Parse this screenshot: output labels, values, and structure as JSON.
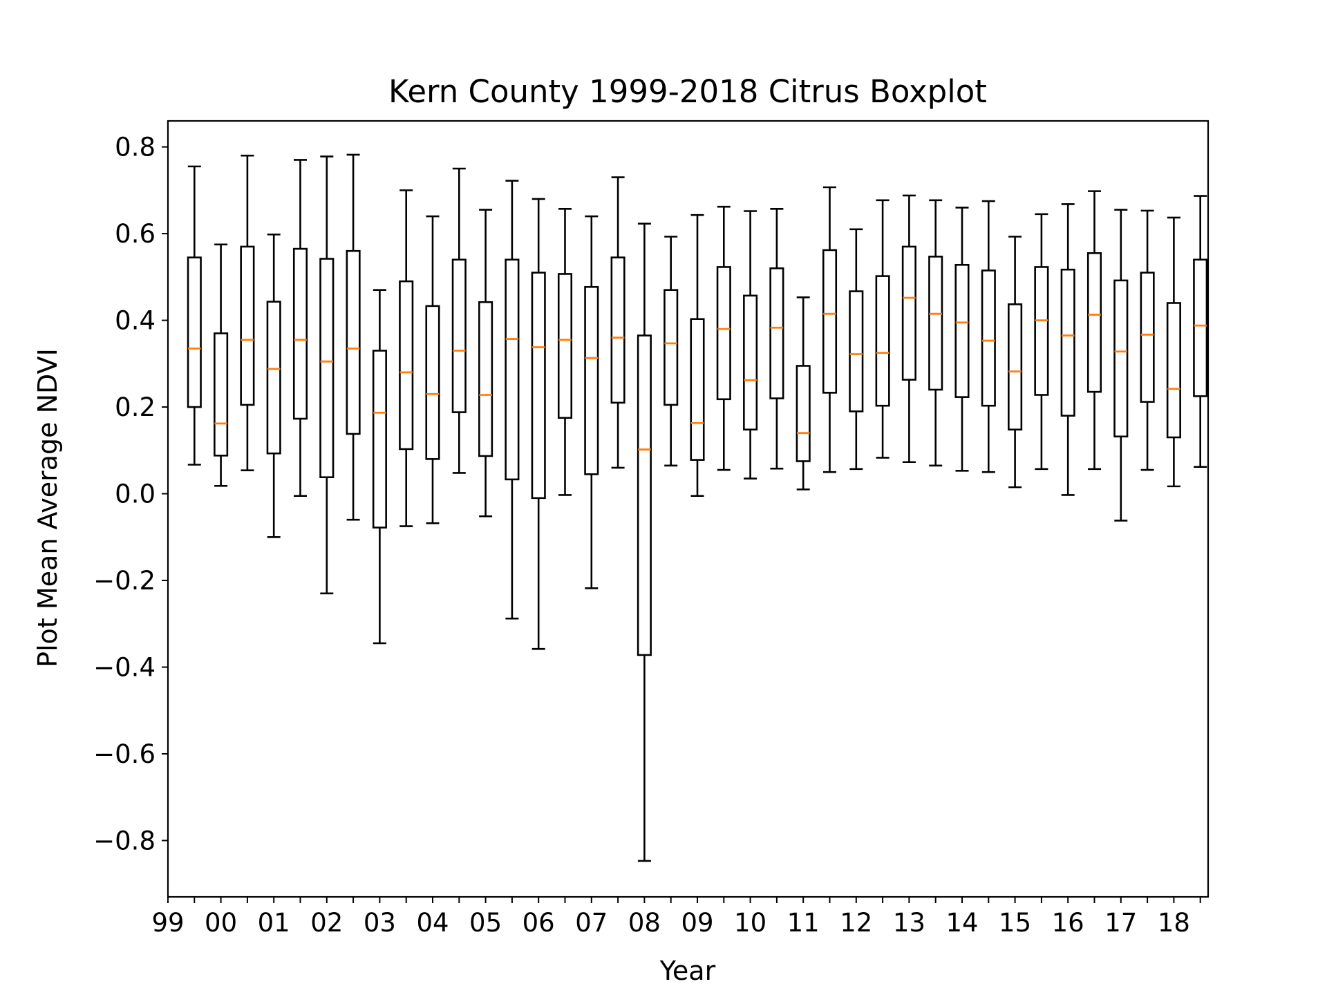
{
  "chart_data": {
    "type": "boxplot",
    "title": "Kern County 1999-2018 Citrus Boxplot",
    "xlabel": "Year",
    "ylabel": "Plot Mean Average NDVI",
    "ylim": [
      -0.93,
      0.86
    ],
    "yticks": [
      0.8,
      0.6,
      0.4,
      0.2,
      0.0,
      -0.2,
      -0.4,
      -0.6,
      -0.8
    ],
    "ytick_labels": [
      "0.8",
      "0.6",
      "0.4",
      "0.2",
      "0.0",
      "−0.2",
      "−0.4",
      "−0.6",
      "−0.8"
    ],
    "xtick_labels": [
      "99",
      "00",
      "01",
      "02",
      "03",
      "04",
      "05",
      "06",
      "07",
      "08",
      "09",
      "10",
      "11",
      "12",
      "13",
      "14",
      "15",
      "16",
      "17",
      "18"
    ],
    "grid": false,
    "colors": {
      "box": "#000000",
      "median": "#ff7f0e"
    },
    "boxes": [
      {
        "whislo": 0.067,
        "q1": 0.2,
        "med": 0.335,
        "q3": 0.545,
        "whishi": 0.755
      },
      {
        "whislo": 0.018,
        "q1": 0.088,
        "med": 0.162,
        "q3": 0.37,
        "whishi": 0.575
      },
      {
        "whislo": 0.054,
        "q1": 0.205,
        "med": 0.355,
        "q3": 0.57,
        "whishi": 0.78
      },
      {
        "whislo": -0.1,
        "q1": 0.093,
        "med": 0.288,
        "q3": 0.443,
        "whishi": 0.598
      },
      {
        "whislo": -0.005,
        "q1": 0.173,
        "med": 0.355,
        "q3": 0.565,
        "whishi": 0.77
      },
      {
        "whislo": -0.23,
        "q1": 0.038,
        "med": 0.305,
        "q3": 0.542,
        "whishi": 0.778
      },
      {
        "whislo": -0.06,
        "q1": 0.138,
        "med": 0.335,
        "q3": 0.56,
        "whishi": 0.782
      },
      {
        "whislo": -0.345,
        "q1": -0.078,
        "med": 0.187,
        "q3": 0.33,
        "whishi": 0.47
      },
      {
        "whislo": -0.075,
        "q1": 0.103,
        "med": 0.28,
        "q3": 0.49,
        "whishi": 0.7
      },
      {
        "whislo": -0.068,
        "q1": 0.08,
        "med": 0.23,
        "q3": 0.433,
        "whishi": 0.64
      },
      {
        "whislo": 0.048,
        "q1": 0.188,
        "med": 0.33,
        "q3": 0.54,
        "whishi": 0.75
      },
      {
        "whislo": -0.052,
        "q1": 0.087,
        "med": 0.228,
        "q3": 0.442,
        "whishi": 0.655
      },
      {
        "whislo": -0.288,
        "q1": 0.033,
        "med": 0.357,
        "q3": 0.54,
        "whishi": 0.722
      },
      {
        "whislo": -0.358,
        "q1": -0.01,
        "med": 0.338,
        "q3": 0.51,
        "whishi": 0.68
      },
      {
        "whislo": -0.003,
        "q1": 0.175,
        "med": 0.355,
        "q3": 0.507,
        "whishi": 0.657
      },
      {
        "whislo": -0.218,
        "q1": 0.045,
        "med": 0.313,
        "q3": 0.477,
        "whishi": 0.64
      },
      {
        "whislo": 0.06,
        "q1": 0.21,
        "med": 0.36,
        "q3": 0.545,
        "whishi": 0.73
      },
      {
        "whislo": -0.847,
        "q1": -0.372,
        "med": 0.102,
        "q3": 0.365,
        "whishi": 0.623
      },
      {
        "whislo": 0.065,
        "q1": 0.205,
        "med": 0.347,
        "q3": 0.47,
        "whishi": 0.593
      },
      {
        "whislo": -0.005,
        "q1": 0.078,
        "med": 0.163,
        "q3": 0.403,
        "whishi": 0.643
      },
      {
        "whislo": 0.055,
        "q1": 0.218,
        "med": 0.38,
        "q3": 0.523,
        "whishi": 0.662
      },
      {
        "whislo": 0.035,
        "q1": 0.148,
        "med": 0.262,
        "q3": 0.457,
        "whishi": 0.652
      },
      {
        "whislo": 0.058,
        "q1": 0.22,
        "med": 0.383,
        "q3": 0.52,
        "whishi": 0.657
      },
      {
        "whislo": 0.01,
        "q1": 0.075,
        "med": 0.14,
        "q3": 0.295,
        "whishi": 0.453
      },
      {
        "whislo": 0.05,
        "q1": 0.233,
        "med": 0.415,
        "q3": 0.562,
        "whishi": 0.707
      },
      {
        "whislo": 0.057,
        "q1": 0.19,
        "med": 0.322,
        "q3": 0.467,
        "whishi": 0.61
      },
      {
        "whislo": 0.083,
        "q1": 0.203,
        "med": 0.325,
        "q3": 0.502,
        "whishi": 0.677
      },
      {
        "whislo": 0.073,
        "q1": 0.263,
        "med": 0.452,
        "q3": 0.57,
        "whishi": 0.688
      },
      {
        "whislo": 0.065,
        "q1": 0.24,
        "med": 0.415,
        "q3": 0.547,
        "whishi": 0.677
      },
      {
        "whislo": 0.053,
        "q1": 0.223,
        "med": 0.395,
        "q3": 0.528,
        "whishi": 0.66
      },
      {
        "whislo": 0.05,
        "q1": 0.203,
        "med": 0.353,
        "q3": 0.515,
        "whishi": 0.675
      },
      {
        "whislo": 0.015,
        "q1": 0.148,
        "med": 0.282,
        "q3": 0.437,
        "whishi": 0.593
      },
      {
        "whislo": 0.057,
        "q1": 0.228,
        "med": 0.4,
        "q3": 0.523,
        "whishi": 0.645
      },
      {
        "whislo": -0.003,
        "q1": 0.18,
        "med": 0.365,
        "q3": 0.517,
        "whishi": 0.668
      },
      {
        "whislo": 0.057,
        "q1": 0.235,
        "med": 0.413,
        "q3": 0.555,
        "whishi": 0.698
      },
      {
        "whislo": -0.062,
        "q1": 0.132,
        "med": 0.328,
        "q3": 0.492,
        "whishi": 0.655
      },
      {
        "whislo": 0.055,
        "q1": 0.212,
        "med": 0.367,
        "q3": 0.51,
        "whishi": 0.653
      },
      {
        "whislo": 0.017,
        "q1": 0.13,
        "med": 0.242,
        "q3": 0.44,
        "whishi": 0.637
      },
      {
        "whislo": 0.062,
        "q1": 0.225,
        "med": 0.388,
        "q3": 0.54,
        "whishi": 0.687
      }
    ]
  }
}
